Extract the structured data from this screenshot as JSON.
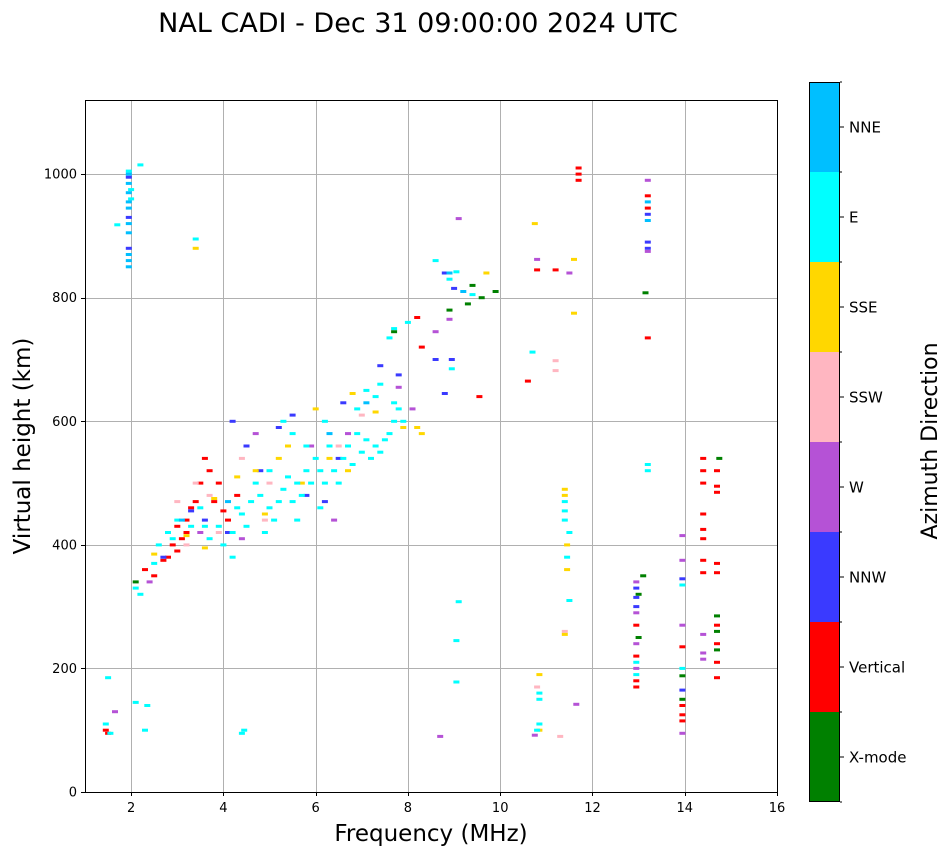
{
  "chart_data": {
    "type": "scatter",
    "title": "NAL CADI - Dec 31 09:00:00 2024 UTC",
    "xlabel": "Frequency (MHz)",
    "ylabel": "Virtual height (km)",
    "xlim": [
      1,
      16
    ],
    "ylim": [
      0,
      1120
    ],
    "xticks": [
      2,
      4,
      6,
      8,
      10,
      12,
      14,
      16
    ],
    "yticks": [
      0,
      200,
      400,
      600,
      800,
      1000
    ],
    "grid": true,
    "colorbar": {
      "title": "Azimuth Direction",
      "categories": [
        {
          "label": "X-mode",
          "color": "#008000"
        },
        {
          "label": "Vertical",
          "color": "#ff0000"
        },
        {
          "label": "NNW",
          "color": "#3a3aff"
        },
        {
          "label": "W",
          "color": "#b552d6"
        },
        {
          "label": "SSW",
          "color": "#ffb6c1"
        },
        {
          "label": "SSE",
          "color": "#ffd700"
        },
        {
          "label": "E",
          "color": "#00ffff"
        },
        {
          "label": "NNE",
          "color": "#00bfff"
        }
      ]
    },
    "series": [
      {
        "name": "X-mode",
        "points": [
          [
            9.3,
            790
          ],
          [
            9.6,
            800
          ],
          [
            9.9,
            810
          ],
          [
            8.9,
            780
          ],
          [
            13.15,
            808
          ],
          [
            13.95,
            188
          ],
          [
            13.95,
            150
          ],
          [
            14.7,
            285
          ],
          [
            14.7,
            260
          ],
          [
            14.7,
            230
          ],
          [
            14.75,
            540
          ],
          [
            13.1,
            350
          ],
          [
            13.0,
            320
          ],
          [
            13.0,
            250
          ],
          [
            2.1,
            340
          ],
          [
            7.7,
            745
          ],
          [
            9.4,
            820
          ]
        ]
      },
      {
        "name": "Vertical",
        "points": [
          [
            11.7,
            1010
          ],
          [
            11.7,
            1000
          ],
          [
            11.7,
            990
          ],
          [
            13.2,
            965
          ],
          [
            13.2,
            945
          ],
          [
            13.2,
            735
          ],
          [
            10.8,
            845
          ],
          [
            11.2,
            845
          ],
          [
            10.6,
            665
          ],
          [
            9.55,
            640
          ],
          [
            8.2,
            768
          ],
          [
            8.3,
            720
          ],
          [
            14.4,
            540
          ],
          [
            14.4,
            520
          ],
          [
            14.4,
            500
          ],
          [
            14.4,
            450
          ],
          [
            14.4,
            425
          ],
          [
            14.4,
            410
          ],
          [
            14.4,
            375
          ],
          [
            14.4,
            355
          ],
          [
            14.7,
            520
          ],
          [
            14.7,
            495
          ],
          [
            14.7,
            485
          ],
          [
            14.7,
            370
          ],
          [
            14.7,
            355
          ],
          [
            14.7,
            270
          ],
          [
            14.7,
            240
          ],
          [
            14.7,
            210
          ],
          [
            14.7,
            185
          ],
          [
            13.95,
            140
          ],
          [
            13.95,
            125
          ],
          [
            13.95,
            115
          ],
          [
            13.95,
            235
          ],
          [
            12.95,
            270
          ],
          [
            12.95,
            220
          ],
          [
            12.95,
            180
          ],
          [
            12.95,
            170
          ],
          [
            3.0,
            430
          ],
          [
            3.1,
            410
          ],
          [
            2.9,
            400
          ],
          [
            2.8,
            380
          ],
          [
            3.2,
            440
          ],
          [
            3.3,
            460
          ],
          [
            3.5,
            500
          ],
          [
            3.6,
            540
          ],
          [
            3.7,
            520
          ],
          [
            3.4,
            470
          ],
          [
            3.2,
            420
          ],
          [
            2.7,
            375
          ],
          [
            3.8,
            470
          ],
          [
            4.1,
            440
          ],
          [
            4.3,
            480
          ],
          [
            3.0,
            390
          ],
          [
            2.5,
            350
          ],
          [
            1.45,
            100
          ],
          [
            1.5,
            95
          ],
          [
            2.3,
            360
          ],
          [
            3.9,
            500
          ],
          [
            4.0,
            455
          ]
        ]
      },
      {
        "name": "NNW",
        "points": [
          [
            1.95,
            995
          ],
          [
            1.95,
            930
          ],
          [
            1.95,
            880
          ],
          [
            13.2,
            935
          ],
          [
            13.2,
            890
          ],
          [
            13.2,
            880
          ],
          [
            8.8,
            840
          ],
          [
            8.95,
            700
          ],
          [
            8.8,
            645
          ],
          [
            9.0,
            815
          ],
          [
            8.6,
            700
          ],
          [
            13.95,
            165
          ],
          [
            13.95,
            345
          ],
          [
            12.95,
            300
          ],
          [
            12.95,
            315
          ],
          [
            12.95,
            330
          ],
          [
            4.2,
            600
          ],
          [
            4.5,
            560
          ],
          [
            5.2,
            590
          ],
          [
            5.5,
            610
          ],
          [
            6.2,
            470
          ],
          [
            6.6,
            630
          ],
          [
            7.4,
            690
          ],
          [
            7.8,
            675
          ],
          [
            3.3,
            455
          ],
          [
            2.7,
            380
          ],
          [
            3.6,
            440
          ],
          [
            4.8,
            520
          ],
          [
            5.8,
            480
          ],
          [
            6.5,
            540
          ],
          [
            4.1,
            420
          ]
        ]
      },
      {
        "name": "W",
        "points": [
          [
            13.2,
            990
          ],
          [
            13.2,
            875
          ],
          [
            9.1,
            928
          ],
          [
            10.8,
            862
          ],
          [
            11.5,
            840
          ],
          [
            8.6,
            745
          ],
          [
            8.9,
            765
          ],
          [
            7.8,
            655
          ],
          [
            8.1,
            620
          ],
          [
            12.95,
            340
          ],
          [
            12.95,
            290
          ],
          [
            12.95,
            240
          ],
          [
            12.95,
            200
          ],
          [
            13.95,
            415
          ],
          [
            13.95,
            375
          ],
          [
            13.95,
            270
          ],
          [
            13.95,
            95
          ],
          [
            14.4,
            255
          ],
          [
            14.4,
            225
          ],
          [
            14.4,
            215
          ],
          [
            11.65,
            142
          ],
          [
            10.75,
            92
          ],
          [
            8.7,
            90
          ],
          [
            1.65,
            130
          ],
          [
            6.4,
            440
          ],
          [
            6.7,
            580
          ],
          [
            5.9,
            560
          ],
          [
            4.7,
            580
          ],
          [
            4.4,
            410
          ],
          [
            2.4,
            340
          ],
          [
            3.5,
            420
          ]
        ]
      },
      {
        "name": "SSW",
        "points": [
          [
            11.2,
            698
          ],
          [
            11.2,
            682
          ],
          [
            11.4,
            260
          ],
          [
            11.3,
            90
          ],
          [
            10.8,
            170
          ],
          [
            3.0,
            470
          ],
          [
            3.4,
            500
          ],
          [
            3.7,
            480
          ],
          [
            4.4,
            540
          ],
          [
            5.0,
            500
          ],
          [
            6.5,
            560
          ],
          [
            4.9,
            440
          ],
          [
            3.9,
            420
          ],
          [
            7.0,
            610
          ],
          [
            3.2,
            400
          ]
        ]
      },
      {
        "name": "SSE",
        "points": [
          [
            3.4,
            880
          ],
          [
            10.75,
            920
          ],
          [
            11.6,
            862
          ],
          [
            11.6,
            775
          ],
          [
            9.7,
            840
          ],
          [
            11.4,
            490
          ],
          [
            11.4,
            480
          ],
          [
            11.45,
            400
          ],
          [
            11.45,
            360
          ],
          [
            11.4,
            255
          ],
          [
            10.85,
            190
          ],
          [
            10.85,
            100
          ],
          [
            8.2,
            590
          ],
          [
            8.3,
            580
          ],
          [
            7.9,
            590
          ],
          [
            7.3,
            615
          ],
          [
            6.8,
            645
          ],
          [
            6.0,
            620
          ],
          [
            5.4,
            560
          ],
          [
            5.2,
            540
          ],
          [
            4.7,
            520
          ],
          [
            4.3,
            510
          ],
          [
            3.8,
            475
          ],
          [
            3.2,
            415
          ],
          [
            2.5,
            385
          ],
          [
            6.7,
            520
          ],
          [
            6.3,
            540
          ],
          [
            5.7,
            500
          ],
          [
            3.6,
            395
          ],
          [
            4.9,
            450
          ]
        ]
      },
      {
        "name": "E",
        "points": [
          [
            2.0,
            975
          ],
          [
            2.0,
            960
          ],
          [
            1.95,
            1005
          ],
          [
            2.2,
            1015
          ],
          [
            3.4,
            895
          ],
          [
            1.7,
            918
          ],
          [
            8.6,
            860
          ],
          [
            9.05,
            842
          ],
          [
            8.9,
            830
          ],
          [
            9.4,
            805
          ],
          [
            8.95,
            685
          ],
          [
            8.0,
            760
          ],
          [
            7.6,
            735
          ],
          [
            7.7,
            750
          ],
          [
            7.3,
            640
          ],
          [
            7.4,
            660
          ],
          [
            7.7,
            630
          ],
          [
            7.7,
            600
          ],
          [
            7.9,
            600
          ],
          [
            10.7,
            712
          ],
          [
            11.4,
            470
          ],
          [
            11.4,
            455
          ],
          [
            11.4,
            440
          ],
          [
            11.5,
            420
          ],
          [
            11.45,
            380
          ],
          [
            11.5,
            310
          ],
          [
            10.85,
            160
          ],
          [
            10.85,
            150
          ],
          [
            10.85,
            110
          ],
          [
            10.8,
            100
          ],
          [
            9.1,
            308
          ],
          [
            9.05,
            245
          ],
          [
            9.05,
            178
          ],
          [
            13.2,
            530
          ],
          [
            13.2,
            520
          ],
          [
            13.95,
            335
          ],
          [
            13.95,
            200
          ],
          [
            12.95,
            190
          ],
          [
            12.95,
            210
          ],
          [
            1.5,
            185
          ],
          [
            1.45,
            110
          ],
          [
            1.55,
            95
          ],
          [
            2.3,
            100
          ],
          [
            2.35,
            140
          ],
          [
            4.4,
            95
          ],
          [
            4.45,
            100
          ],
          [
            2.1,
            145
          ],
          [
            2.2,
            320
          ],
          [
            2.1,
            330
          ],
          [
            2.5,
            370
          ],
          [
            2.6,
            400
          ],
          [
            2.8,
            420
          ],
          [
            3.0,
            440
          ],
          [
            3.3,
            430
          ],
          [
            3.5,
            460
          ],
          [
            3.7,
            410
          ],
          [
            3.9,
            430
          ],
          [
            4.0,
            400
          ],
          [
            4.2,
            380
          ],
          [
            4.3,
            460
          ],
          [
            4.5,
            430
          ],
          [
            4.6,
            470
          ],
          [
            4.8,
            480
          ],
          [
            4.9,
            420
          ],
          [
            5.0,
            460
          ],
          [
            5.1,
            440
          ],
          [
            5.2,
            470
          ],
          [
            5.3,
            490
          ],
          [
            5.4,
            510
          ],
          [
            5.5,
            470
          ],
          [
            5.6,
            500
          ],
          [
            5.7,
            480
          ],
          [
            5.8,
            520
          ],
          [
            5.9,
            500
          ],
          [
            6.0,
            540
          ],
          [
            6.1,
            520
          ],
          [
            6.2,
            500
          ],
          [
            6.3,
            560
          ],
          [
            6.4,
            520
          ],
          [
            6.5,
            500
          ],
          [
            6.6,
            540
          ],
          [
            6.7,
            560
          ],
          [
            6.8,
            530
          ],
          [
            6.9,
            580
          ],
          [
            7.0,
            550
          ],
          [
            7.1,
            570
          ],
          [
            7.2,
            540
          ],
          [
            7.3,
            560
          ],
          [
            7.4,
            550
          ],
          [
            7.5,
            570
          ],
          [
            7.6,
            580
          ],
          [
            7.8,
            620
          ],
          [
            5.3,
            600
          ],
          [
            5.5,
            580
          ],
          [
            4.7,
            500
          ],
          [
            4.4,
            450
          ],
          [
            5.6,
            440
          ],
          [
            6.2,
            600
          ],
          [
            6.9,
            620
          ],
          [
            7.1,
            650
          ],
          [
            5.0,
            520
          ],
          [
            5.8,
            560
          ],
          [
            6.1,
            460
          ],
          [
            4.2,
            420
          ],
          [
            3.6,
            430
          ],
          [
            2.9,
            410
          ]
        ]
      },
      {
        "name": "NNE",
        "points": [
          [
            1.95,
            1000
          ],
          [
            1.95,
            985
          ],
          [
            1.95,
            970
          ],
          [
            1.95,
            955
          ],
          [
            1.95,
            945
          ],
          [
            1.95,
            920
          ],
          [
            1.95,
            905
          ],
          [
            1.95,
            870
          ],
          [
            1.95,
            860
          ],
          [
            1.95,
            850
          ],
          [
            13.2,
            955
          ],
          [
            13.2,
            925
          ],
          [
            9.2,
            810
          ],
          [
            8.9,
            840
          ],
          [
            7.1,
            630
          ],
          [
            6.3,
            580
          ],
          [
            4.1,
            470
          ],
          [
            3.1,
            440
          ]
        ]
      }
    ]
  }
}
